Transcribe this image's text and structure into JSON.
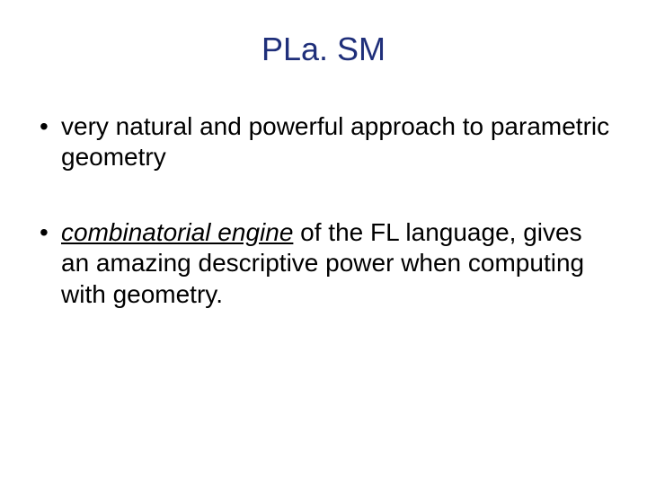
{
  "slide": {
    "title": "PLa. SM",
    "title_color": "#1f2f7a",
    "title_fontsize": 36,
    "background_color": "#ffffff",
    "body_fontsize": 28,
    "body_color": "#000000",
    "bullets": [
      {
        "segments": [
          {
            "text": "very natural and powerful approach to parametric geometry",
            "style": "normal"
          }
        ]
      },
      {
        "segments": [
          {
            "text": "combinatorial engine",
            "style": "emphasized"
          },
          {
            "text": " of the FL language, gives an amazing descriptive power when computing with geometry.",
            "style": "normal"
          }
        ]
      }
    ]
  }
}
